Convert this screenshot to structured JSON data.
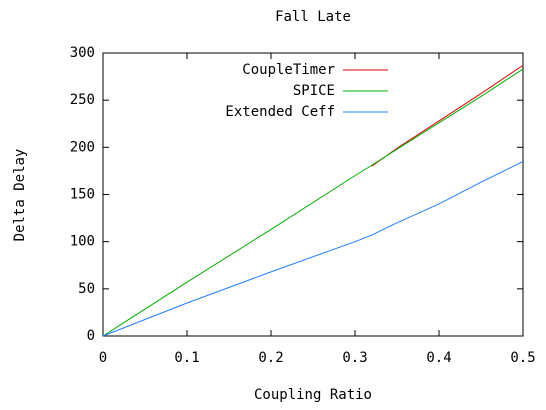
{
  "chart_data": {
    "type": "line",
    "title": "Fall Late",
    "x_label": "Coupling Ratio",
    "y_label": "Delta Delay",
    "x": [
      0,
      0.1,
      0.2,
      0.3,
      0.32,
      0.35,
      0.4,
      0.45,
      0.5
    ],
    "series": [
      {
        "name": "CoupleTimer",
        "color": "#e00000",
        "values": [
          null,
          null,
          null,
          null,
          180,
          199,
          228,
          257,
          287
        ]
      },
      {
        "name": "SPICE",
        "color": "#00b000",
        "values": [
          0,
          57,
          113,
          170,
          181,
          198,
          226,
          254,
          283
        ]
      },
      {
        "name": "Extended Ceff",
        "color": "#2080ff",
        "values": [
          0,
          35,
          68,
          100,
          107,
          120,
          140,
          163,
          185
        ]
      }
    ],
    "xlim": [
      0,
      0.5
    ],
    "xticks": [
      0,
      0.1,
      0.2,
      0.3,
      0.4,
      0.5
    ],
    "ylim": [
      0,
      300
    ],
    "yticks": [
      0,
      50,
      100,
      150,
      200,
      250,
      300
    ],
    "legend": "top-right",
    "grid": false
  }
}
